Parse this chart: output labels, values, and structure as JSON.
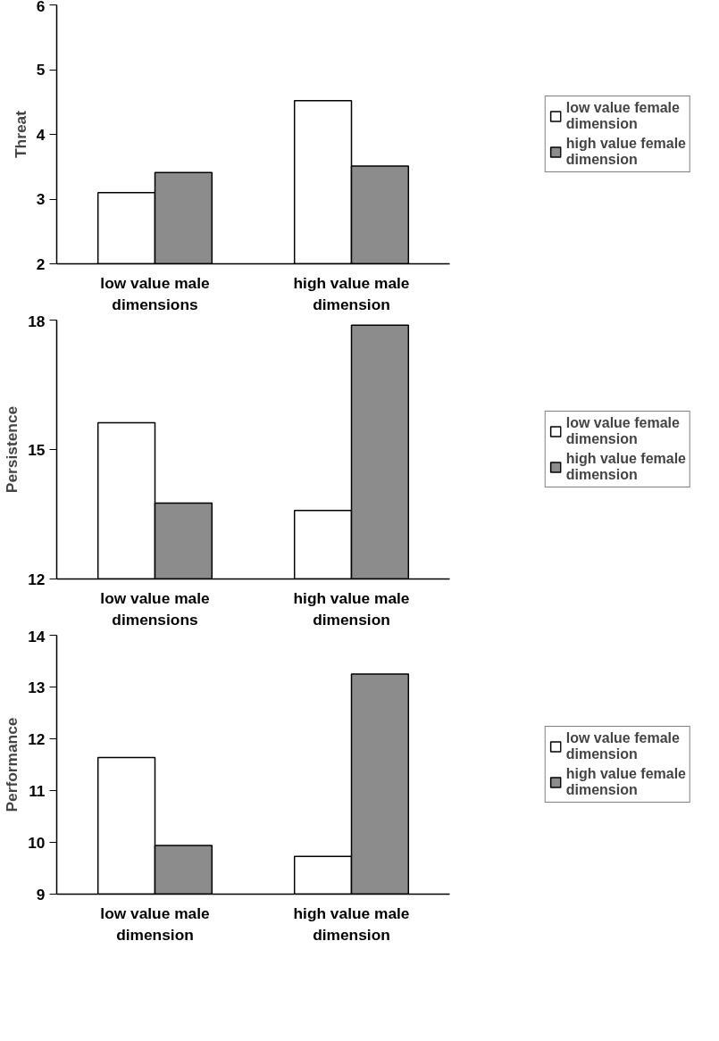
{
  "chart_data": [
    {
      "type": "bar",
      "ylabel": "Threat",
      "categories": [
        "low value male dimensions",
        "high value male dimension"
      ],
      "ylim": [
        2,
        6
      ],
      "yticks": [
        2,
        3,
        4,
        5,
        6
      ],
      "grid": false,
      "legend": "right",
      "series": [
        {
          "name": "low value female dimension",
          "color": "#ffffff",
          "values": [
            3.1,
            4.52
          ]
        },
        {
          "name": "high value female dimension",
          "color": "#8c8c8c",
          "values": [
            3.41,
            3.51
          ]
        }
      ]
    },
    {
      "type": "bar",
      "ylabel": "Persistence",
      "categories": [
        "low value male dimensions",
        "high value male dimension"
      ],
      "ylim": [
        12,
        18
      ],
      "yticks": [
        12,
        15,
        18
      ],
      "grid": false,
      "legend": "right",
      "series": [
        {
          "name": "low value female dimension",
          "color": "#ffffff",
          "values": [
            15.62,
            13.59
          ]
        },
        {
          "name": "high value female dimension",
          "color": "#8c8c8c",
          "values": [
            13.76,
            17.88
          ]
        }
      ]
    },
    {
      "type": "bar",
      "ylabel": "Performance",
      "categories": [
        "low value male dimension",
        "high value male dimension"
      ],
      "ylim": [
        9,
        14
      ],
      "yticks": [
        9,
        10,
        11,
        12,
        13,
        14
      ],
      "grid": false,
      "legend": "right",
      "series": [
        {
          "name": "low value female dimension",
          "color": "#ffffff",
          "values": [
            11.64,
            9.73
          ]
        },
        {
          "name": "high value female dimension",
          "color": "#8c8c8c",
          "values": [
            9.94,
            13.25
          ]
        }
      ]
    }
  ]
}
